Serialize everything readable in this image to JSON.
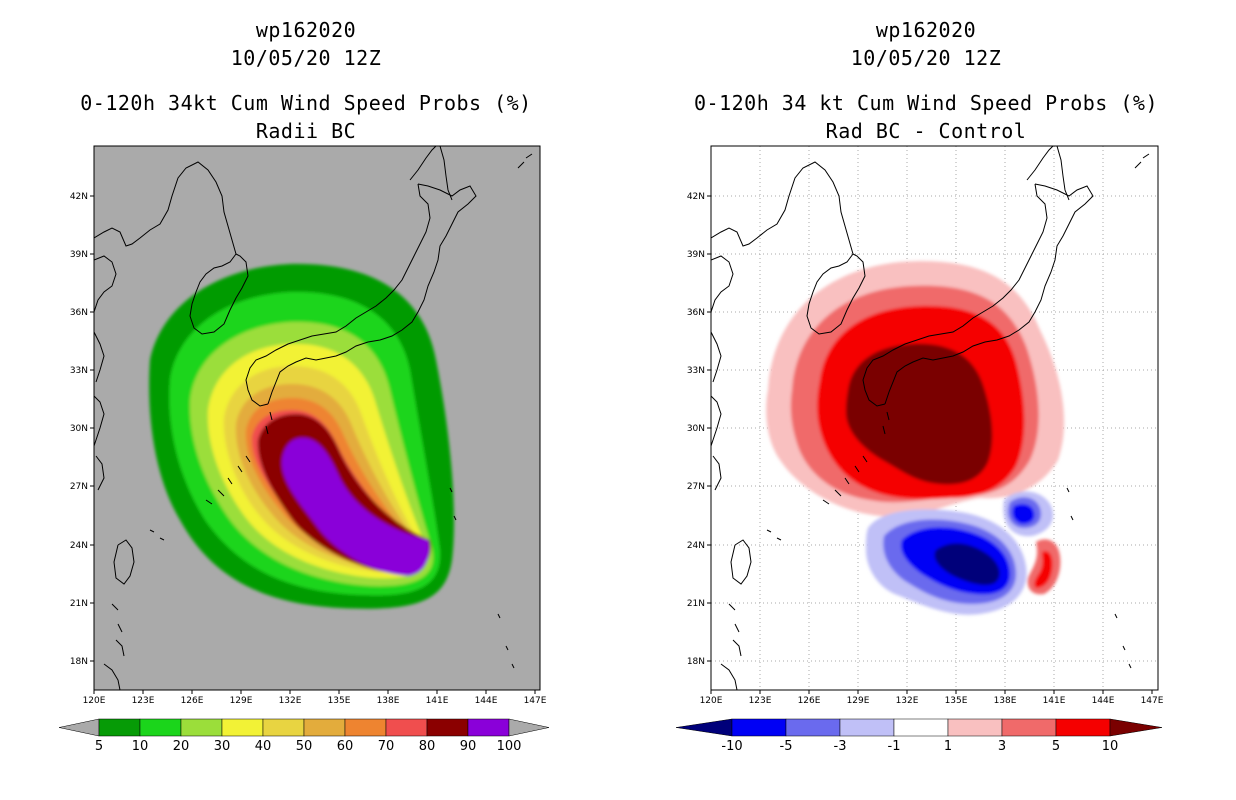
{
  "left_panel": {
    "storm_id": "wp162020",
    "datetime": "10/05/20 12Z",
    "title": "0-120h 34kt Cum Wind Speed Probs (%)",
    "subtitle": "Radii BC",
    "colorbar": {
      "labels": [
        "5",
        "10",
        "20",
        "30",
        "40",
        "50",
        "60",
        "70",
        "80",
        "90",
        "100"
      ],
      "colors": [
        "#6e8a19",
        "#069b06",
        "#1bd51b",
        "#9bde3a",
        "#f2f236",
        "#e8d441",
        "#e3ac3c",
        "#ee8430",
        "#f04e4e",
        "#8b0000",
        "#8a00d9"
      ]
    },
    "background_color": "#aaaaaa"
  },
  "right_panel": {
    "storm_id": "wp162020",
    "datetime": "10/05/20 12Z",
    "title": "0-120h 34 kt Cum Wind Speed Probs (%)",
    "subtitle": "Rad BC - Control",
    "colorbar": {
      "labels": [
        "-10",
        "-5",
        "-3",
        "-1",
        "1",
        "3",
        "5",
        "10"
      ],
      "colors": [
        "#00007a",
        "#0000f5",
        "#6a6aee",
        "#c0c0f7",
        "#ffffff",
        "#f9c0c0",
        "#f06a6a",
        "#f50000",
        "#7a0000"
      ]
    },
    "background_color": "#ffffff"
  },
  "axes": {
    "lat_labels": [
      "42N",
      "39N",
      "36N",
      "33N",
      "30N",
      "27N",
      "24N",
      "21N",
      "18N"
    ],
    "lon_labels": [
      "120E",
      "123E",
      "126E",
      "129E",
      "132E",
      "135E",
      "138E",
      "141E",
      "144E",
      "147E"
    ]
  }
}
